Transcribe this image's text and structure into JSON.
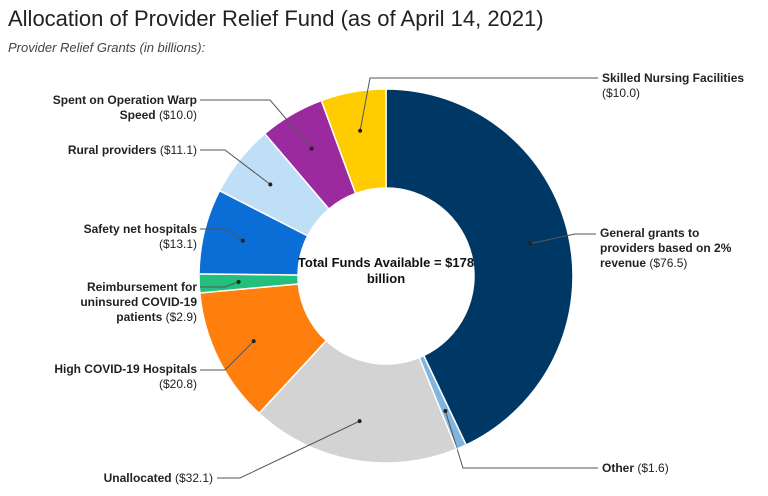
{
  "chart_data": {
    "type": "donut",
    "title": "Allocation of Provider Relief Fund (as of April 14, 2021)",
    "subtitle": "Provider Relief Grants (in billions):",
    "center_label": "Total Funds Available = $178 billion",
    "categories": [
      "General grants to providers based on 2% revenue",
      "Other",
      "Unallocated",
      "High COVID-19 Hospitals",
      "Reimbursement for uninsured COVID-19 patients",
      "Safety net hospitals",
      "Rural providers",
      "Spent on Operation Warp Speed",
      "Skilled Nursing Facilities"
    ],
    "values": [
      76.5,
      1.6,
      32.1,
      20.8,
      2.9,
      13.1,
      11.1,
      10.0,
      10.0
    ],
    "value_labels": [
      "($76.5)",
      "($1.6)",
      "($32.1)",
      "($20.8)",
      "($2.9)",
      "($13.1)",
      "($11.1)",
      "($10.0)",
      "($10.0)"
    ],
    "colors": [
      "#003865",
      "#7fb5df",
      "#d3d3d3",
      "#ff7f0e",
      "#22c07c",
      "#0a6ed6",
      "#bfdff6",
      "#9b2a9f",
      "#ffcc00"
    ]
  }
}
